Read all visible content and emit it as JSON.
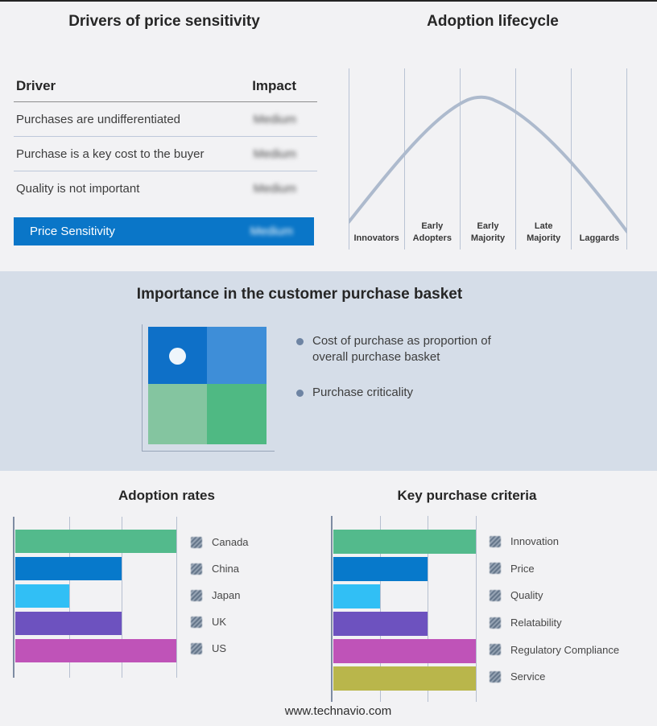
{
  "page": {
    "footer": "www.technavio.com"
  },
  "drivers_table": {
    "title": "Drivers of price sensitivity",
    "columns": [
      "Driver",
      "Impact"
    ],
    "rows": [
      {
        "driver": "Purchases are undifferentiated",
        "impact": "Medium"
      },
      {
        "driver": "Purchase is a key cost to the buyer",
        "impact": "Medium"
      },
      {
        "driver": "Quality is not important",
        "impact": "Medium"
      }
    ],
    "highlight": {
      "driver": "Price Sensitivity",
      "impact": "Medium",
      "color": "#0a76c8"
    }
  },
  "lifecycle": {
    "title": "Adoption lifecycle",
    "curve_color": "#adbacd",
    "gridline_color": "#b9c3d4"
  },
  "basket": {
    "title": "Importance in the customer purchase basket",
    "bullets": [
      "Cost of purchase as proportion of overall purchase basket",
      "Purchase criticality"
    ],
    "quadrant": {
      "top_left": "#0e70c8",
      "top_right": "#3e8ed8",
      "bottom_left": "#84c5a0",
      "bottom_right": "#4fb983",
      "dot": "#eef5fb"
    }
  },
  "chart_data": [
    {
      "type": "line",
      "title": "Adoption lifecycle",
      "categories": [
        "Innovators",
        "Early Adopters",
        "Early Majority",
        "Late Majority",
        "Laggards"
      ],
      "description": "Bell-shaped diffusion-of-innovation curve rising from Innovators, peaking in Early Majority, falling through Laggards",
      "grid": true,
      "legend_position": "none",
      "line_color": "#adbacd"
    },
    {
      "type": "bar",
      "title": "Adoption rates",
      "orientation": "horizontal",
      "categories": [
        "Canada",
        "China",
        "Japan",
        "UK",
        "US"
      ],
      "values": [
        3,
        2,
        1,
        2,
        3
      ],
      "xlim": [
        0,
        3
      ],
      "colors": [
        "#53ba8c",
        "#0779cb",
        "#31bff5",
        "#6d52bf",
        "#bf53b8"
      ],
      "legend_position": "right",
      "grid": true
    },
    {
      "type": "bar",
      "title": "Key purchase criteria",
      "orientation": "horizontal",
      "categories": [
        "Innovation",
        "Price",
        "Quality",
        "Relatability",
        "Regulatory Compliance",
        "Service"
      ],
      "values": [
        3,
        2,
        1,
        2,
        3,
        3
      ],
      "xlim": [
        0,
        3
      ],
      "colors": [
        "#53ba8c",
        "#0779cb",
        "#31bff5",
        "#6d52bf",
        "#bf53b8",
        "#b9b64b"
      ],
      "legend_position": "right",
      "grid": true
    },
    {
      "type": "table",
      "title": "Drivers of price sensitivity",
      "columns": [
        "Driver",
        "Impact"
      ],
      "rows": [
        [
          "Purchases are undifferentiated",
          "Medium"
        ],
        [
          "Purchase is a key cost to the buyer",
          "Medium"
        ],
        [
          "Quality is not important",
          "Medium"
        ],
        [
          "Price Sensitivity",
          "Medium"
        ]
      ]
    }
  ]
}
